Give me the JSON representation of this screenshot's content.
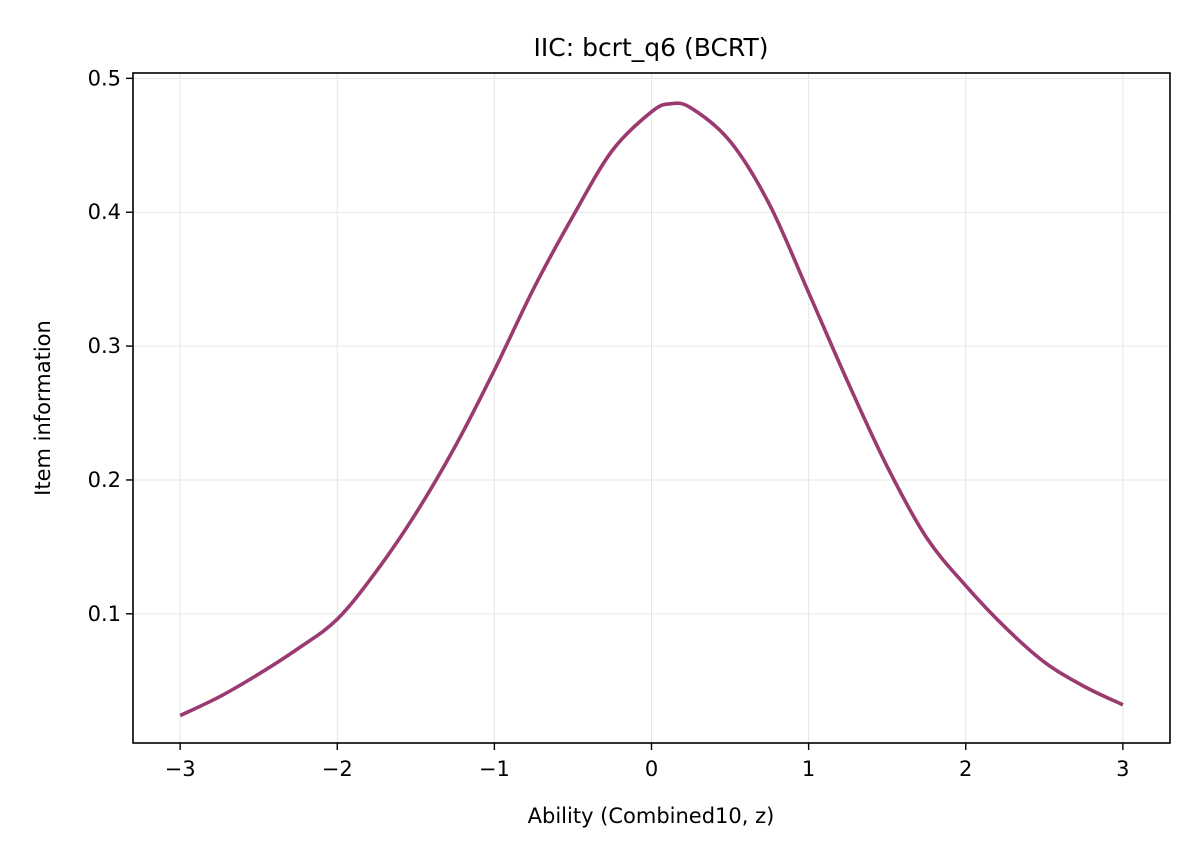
{
  "chart_data": {
    "type": "line",
    "title": "IIC: bcrt_q6 (BCRT)",
    "xlabel": "Ability (Combined10, z)",
    "ylabel": "Item information",
    "xlim": [
      -3.3,
      3.3
    ],
    "ylim": [
      0.0035,
      0.504
    ],
    "xticks": [
      -3,
      -2,
      -1,
      0,
      1,
      2,
      3
    ],
    "xtick_labels": [
      "−3",
      "−2",
      "−1",
      "0",
      "1",
      "2",
      "3"
    ],
    "yticks": [
      0.1,
      0.2,
      0.3,
      0.4,
      0.5
    ],
    "ytick_labels": [
      "0.1",
      "0.2",
      "0.3",
      "0.4",
      "0.5"
    ],
    "grid": true,
    "legend": "none",
    "series": [
      {
        "color": "#9b3a70",
        "x": [
          -3.0,
          -2.75,
          -2.5,
          -2.25,
          -2.0,
          -1.75,
          -1.5,
          -1.25,
          -1.0,
          -0.75,
          -0.5,
          -0.25,
          0.0,
          0.12,
          0.25,
          0.5,
          0.75,
          1.0,
          1.25,
          1.5,
          1.75,
          2.0,
          2.25,
          2.5,
          2.75,
          3.0
        ],
        "y": [
          0.024,
          0.038,
          0.055,
          0.074,
          0.096,
          0.132,
          0.175,
          0.225,
          0.282,
          0.343,
          0.397,
          0.446,
          0.475,
          0.481,
          0.478,
          0.453,
          0.406,
          0.34,
          0.273,
          0.21,
          0.157,
          0.121,
          0.09,
          0.064,
          0.046,
          0.032
        ]
      }
    ]
  }
}
